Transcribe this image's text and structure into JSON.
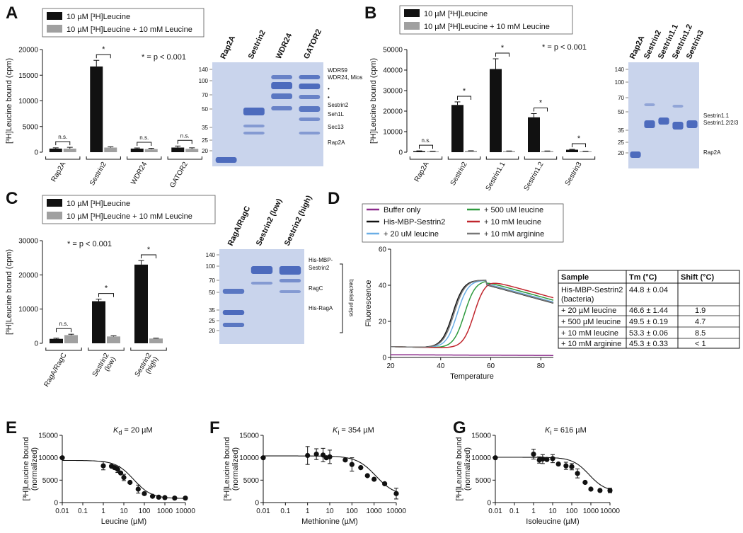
{
  "colors": {
    "black": "#111111",
    "gray": "#a0a0a0",
    "gel_bg": "#c9d4ec",
    "band": "#3f5fb8"
  },
  "panels": {
    "A": "A",
    "B": "B",
    "C": "C",
    "D": "D",
    "E": "E",
    "F": "F",
    "G": "G"
  },
  "legend_abc": {
    "s1": "10 µM [³H]Leucine",
    "s2": "10 µM [³H]Leucine + 10 mM Leucine"
  },
  "sig_note": "* = p < 0.001",
  "ns": "n.s.",
  "star": "*",
  "chart_data": [
    {
      "id": "A",
      "type": "bar",
      "categories": [
        "Rap2A",
        "Sestrin2",
        "WDR24",
        "GATOR2"
      ],
      "series": [
        {
          "name": "10 µM [³H]Leucine",
          "values": [
            700,
            16700,
            700,
            900
          ],
          "errors": [
            150,
            1200,
            120,
            300
          ]
        },
        {
          "name": "10 µM [³H]Leucine + 10 mM Leucine",
          "values": [
            700,
            900,
            600,
            650
          ],
          "errors": [
            250,
            150,
            150,
            200
          ]
        }
      ],
      "ylabel": "[³H]Leucine bound (cpm)",
      "ylim": [
        0,
        20000
      ],
      "yticks": [
        "0",
        "5000",
        "10000",
        "15000",
        "20000"
      ],
      "sig": [
        "n.s.",
        "*",
        "n.s.",
        "n.s."
      ]
    },
    {
      "id": "B",
      "type": "bar",
      "categories": [
        "Rap2A",
        "Sestrin2",
        "Sestrin1.1",
        "Sestrin1.2",
        "Sestrin3"
      ],
      "series": [
        {
          "name": "10 µM [³H]Leucine",
          "values": [
            500,
            23000,
            40500,
            17000,
            1200
          ],
          "errors": [
            150,
            1500,
            5000,
            1800,
            200
          ]
        },
        {
          "name": "10 µM [³H]Leucine + 10 mM Leucine",
          "values": [
            400,
            600,
            500,
            500,
            400
          ],
          "errors": [
            100,
            100,
            100,
            100,
            80
          ]
        }
      ],
      "ylabel": "[³H]Leucine bound (cpm)",
      "ylim": [
        0,
        50000
      ],
      "yticks": [
        "0",
        "10000",
        "20000",
        "30000",
        "40000",
        "50000"
      ],
      "sig": [
        "n.s.",
        "*",
        "*",
        "*",
        "*"
      ]
    },
    {
      "id": "C",
      "type": "bar",
      "categories": [
        "RagA/RagC",
        "Sestrin2\n(low)",
        "Sestrin2\n(high)"
      ],
      "series": [
        {
          "name": "10 µM [³H]Leucine",
          "values": [
            1300,
            12300,
            23000
          ],
          "errors": [
            200,
            600,
            1200
          ]
        },
        {
          "name": "10 µM [³H]Leucine + 10 mM Leucine",
          "values": [
            2400,
            2000,
            1400
          ],
          "errors": [
            250,
            200,
            100
          ]
        }
      ],
      "ylabel": "[³H]Leucine bound (cpm)",
      "ylim": [
        0,
        30000
      ],
      "yticks": [
        "0",
        "10000",
        "20000",
        "30000"
      ],
      "sig": [
        "n.s.",
        "*",
        "*"
      ]
    },
    {
      "id": "D",
      "type": "line",
      "xlabel": "Temperature",
      "ylabel": "Fluorescence",
      "xlim": [
        20,
        85
      ],
      "ylim": [
        0,
        60
      ],
      "xticks": [
        "20",
        "40",
        "60",
        "80"
      ],
      "yticks": [
        "0",
        "20",
        "40",
        "60"
      ],
      "series": [
        {
          "name": "Buffer only",
          "color": "#8b2a8b",
          "mid": 0
        },
        {
          "name": "His-MBP-Sestrin2",
          "color": "#111111",
          "mid": 44.8
        },
        {
          "name": "+ 20 uM leucine",
          "color": "#6aaee6",
          "mid": 46.6
        },
        {
          "name": "+ 500 uM leucine",
          "color": "#2e9a3e",
          "mid": 49.5
        },
        {
          "name": "+ 10 mM leucine",
          "color": "#c0262d",
          "mid": 53.3
        },
        {
          "name": "+ 10 mM arginine",
          "color": "#777777",
          "mid": 45.3
        }
      ]
    },
    {
      "id": "E",
      "type": "scatter",
      "title": "= 20 µM",
      "kvar": "K",
      "ksub": "d",
      "xlabel": "Leucine (µM)",
      "ylabel": [
        "[³H]Leucine bound",
        "(normalized)"
      ],
      "ylim": [
        0,
        15000
      ],
      "yticks": [
        "0",
        "5000",
        "10000",
        "15000"
      ],
      "xticks": [
        "0.01",
        "0.1",
        "1",
        "10",
        "100",
        "1000",
        "10000"
      ],
      "x": [
        0.01,
        1,
        2.5,
        3.5,
        5,
        7,
        10,
        20,
        50,
        100,
        250,
        500,
        1000,
        3000,
        10000
      ],
      "y": [
        10000,
        8200,
        8100,
        7800,
        7400,
        6600,
        5600,
        4500,
        3000,
        2000,
        1400,
        1200,
        1100,
        1000,
        1000
      ],
      "err": [
        0,
        900,
        0,
        0,
        700,
        0,
        700,
        0,
        900,
        0,
        0,
        0,
        0,
        0,
        0
      ],
      "fit": {
        "top": 9400,
        "bottom": 900,
        "ec50": 30
      }
    },
    {
      "id": "F",
      "type": "scatter",
      "title": "= 354 µM",
      "kvar": "K",
      "ksub": "i",
      "xlabel": "Methionine (µM)",
      "ylabel": [
        "[³H]Leucine bound",
        "(normalized)"
      ],
      "ylim": [
        0,
        15000
      ],
      "yticks": [
        "0",
        "5000",
        "10000",
        "15000"
      ],
      "xticks": [
        "0.01",
        "0.1",
        "1",
        "10",
        "100",
        "1000",
        "10000"
      ],
      "x": [
        0.01,
        1,
        2.5,
        5,
        7,
        10,
        50,
        100,
        250,
        500,
        1000,
        3000,
        10000
      ],
      "y": [
        10000,
        10500,
        10800,
        10600,
        10000,
        10200,
        9500,
        8500,
        7800,
        6000,
        5200,
        4200,
        2000
      ],
      "err": [
        0,
        2000,
        1200,
        1500,
        0,
        1500,
        0,
        1500,
        0,
        0,
        0,
        0,
        1200
      ],
      "fit": {
        "top": 10400,
        "bottom": 1500,
        "ec50": 1200
      }
    },
    {
      "id": "G",
      "type": "scatter",
      "title": "= 616 µM",
      "kvar": "K",
      "ksub": "i",
      "xlabel": "Isoleucine (µM)",
      "ylabel": [
        "[³H]Leucine bound",
        "(normalized)"
      ],
      "ylim": [
        0,
        15000
      ],
      "yticks": [
        "0",
        "5000",
        "10000",
        "15000"
      ],
      "xticks": [
        "0.01",
        "0.1",
        "1",
        "10",
        "100",
        "1000",
        "10000"
      ],
      "x": [
        0.01,
        1,
        2,
        3,
        5,
        10,
        20,
        50,
        100,
        200,
        500,
        1000,
        3000,
        10000
      ],
      "y": [
        10000,
        10800,
        9500,
        9700,
        9600,
        9800,
        8600,
        8200,
        8000,
        6500,
        4500,
        3000,
        2700,
        2700
      ],
      "err": [
        0,
        1100,
        700,
        1000,
        0,
        900,
        0,
        800,
        700,
        1000,
        0,
        0,
        0,
        500
      ],
      "fit": {
        "top": 10100,
        "bottom": 2400,
        "ec50": 800
      }
    }
  ],
  "gels": {
    "A": {
      "lanes": [
        "Rap2A",
        "Sestrin2",
        "WDR24",
        "GATOR2"
      ],
      "markers": [
        "140",
        "100",
        "70",
        "50",
        "35",
        "25",
        "20"
      ],
      "bands": [
        "WDR59",
        "WDR24, Mios",
        "•",
        "•",
        "Sestrin2",
        "Seh1L",
        "Sec13",
        "Rap2A"
      ]
    },
    "B": {
      "lanes": [
        "Rap2A",
        "Sestrin2",
        "Sestrin1.1",
        "Sestrin1.2",
        "Sestrin3"
      ],
      "markers": [
        "140",
        "100",
        "70",
        "50",
        "35",
        "25",
        "20"
      ],
      "bands": [
        "Sestrin1.1",
        "Sestrin1.2/2/3",
        "Rap2A"
      ]
    },
    "C": {
      "lanes": [
        "RagA/RagC",
        "Sestrin2 (low)",
        "Sestrin2 (high)"
      ],
      "markers": [
        "140",
        "100",
        "70",
        "50",
        "35",
        "25",
        "20"
      ],
      "bands": [
        "His-MBP-",
        "Sestrin2",
        "RagC",
        "His-RagA"
      ],
      "bracket": "bacterial preps"
    }
  },
  "table_d": {
    "headers": [
      "Sample",
      "Tm (°C)",
      "Shift (°C)"
    ],
    "rows": [
      [
        "His-MBP-Sestrin2",
        "44.8 ± 0.04",
        ""
      ],
      [
        "(bacteria)",
        "",
        ""
      ],
      [
        "+ 20 µM leucine",
        "46.6 ± 1.44",
        "1.9"
      ],
      [
        "+ 500 µM leucine",
        "49.5 ± 0.19",
        "4.7"
      ],
      [
        "+ 10 mM leucine",
        "53.3 ± 0.06",
        "8.5"
      ],
      [
        "+ 10 mM arginine",
        "45.3 ± 0.33",
        "< 1"
      ]
    ]
  }
}
